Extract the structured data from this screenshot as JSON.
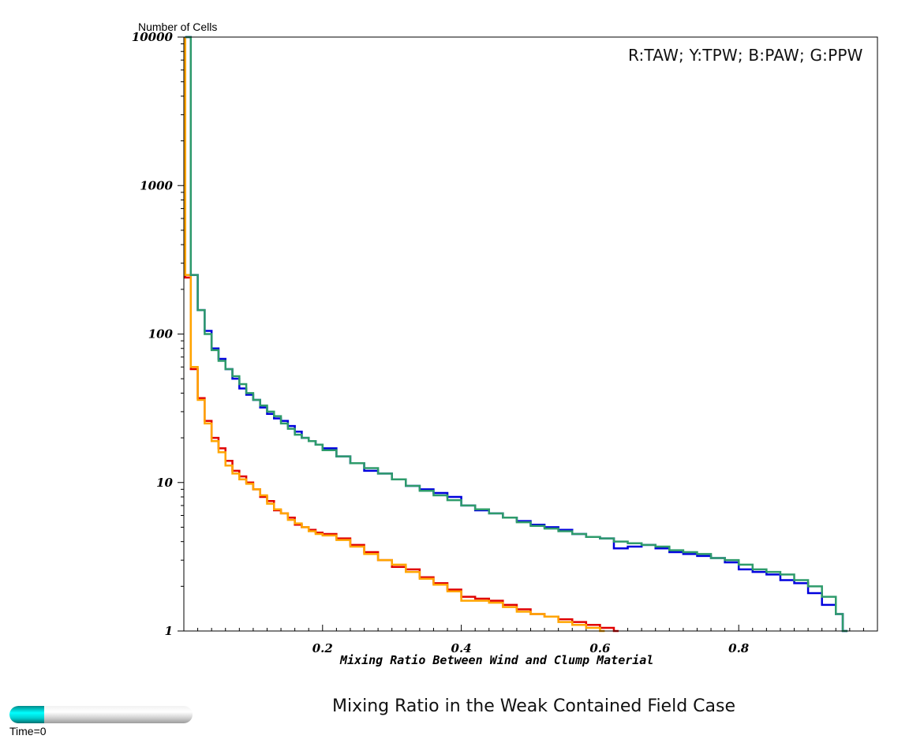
{
  "chart_data": {
    "type": "line",
    "title": "Mixing Ratio in the Weak Contained Field Case",
    "xlabel": "Mixing Ratio Between Wind and Clump Material",
    "ylabel": "Number of Cells",
    "legend_note": "R:TAW; Y:TPW; B:PAW; G:PPW",
    "xlim": [
      0,
      1.0
    ],
    "ylim": [
      1,
      10000
    ],
    "y_scale": "log",
    "x_ticks": [
      0.2,
      0.4,
      0.6,
      0.8
    ],
    "x_tick_labels": [
      "0.2",
      "0.4",
      "0.6",
      "0.8"
    ],
    "y_ticks": [
      1,
      10,
      100,
      1000,
      10000
    ],
    "y_tick_labels": [
      "1",
      "10",
      "100",
      "1000",
      "10000"
    ],
    "grid": false,
    "step": true,
    "series": [
      {
        "name": "TAW",
        "color": "#e00000",
        "points": [
          [
            0.002,
            240
          ],
          [
            0.01,
            58
          ],
          [
            0.02,
            37
          ],
          [
            0.03,
            26
          ],
          [
            0.04,
            20
          ],
          [
            0.05,
            17
          ],
          [
            0.06,
            14
          ],
          [
            0.07,
            12
          ],
          [
            0.08,
            11
          ],
          [
            0.09,
            10
          ],
          [
            0.1,
            9
          ],
          [
            0.11,
            8
          ],
          [
            0.12,
            7.5
          ],
          [
            0.13,
            6.5
          ],
          [
            0.14,
            6.2
          ],
          [
            0.15,
            5.8
          ],
          [
            0.16,
            5.2
          ],
          [
            0.17,
            5
          ],
          [
            0.18,
            4.8
          ],
          [
            0.19,
            4.6
          ],
          [
            0.2,
            4.5
          ],
          [
            0.22,
            4.2
          ],
          [
            0.24,
            3.8
          ],
          [
            0.26,
            3.4
          ],
          [
            0.28,
            3.0
          ],
          [
            0.3,
            2.7
          ],
          [
            0.32,
            2.6
          ],
          [
            0.34,
            2.3
          ],
          [
            0.36,
            2.1
          ],
          [
            0.38,
            1.9
          ],
          [
            0.4,
            1.7
          ],
          [
            0.42,
            1.65
          ],
          [
            0.44,
            1.6
          ],
          [
            0.46,
            1.5
          ],
          [
            0.48,
            1.4
          ],
          [
            0.5,
            1.3
          ],
          [
            0.52,
            1.25
          ],
          [
            0.54,
            1.2
          ],
          [
            0.56,
            1.15
          ],
          [
            0.58,
            1.1
          ],
          [
            0.6,
            1.05
          ],
          [
            0.62,
            1.0
          ]
        ]
      },
      {
        "name": "TPW",
        "color": "#ffa500",
        "points": [
          [
            0.002,
            250
          ],
          [
            0.01,
            60
          ],
          [
            0.02,
            36
          ],
          [
            0.03,
            25
          ],
          [
            0.04,
            19
          ],
          [
            0.05,
            16
          ],
          [
            0.06,
            13
          ],
          [
            0.07,
            11.5
          ],
          [
            0.08,
            10.5
          ],
          [
            0.09,
            9.8
          ],
          [
            0.1,
            9
          ],
          [
            0.11,
            8.2
          ],
          [
            0.12,
            7.2
          ],
          [
            0.13,
            6.6
          ],
          [
            0.14,
            6.2
          ],
          [
            0.15,
            5.6
          ],
          [
            0.16,
            5.3
          ],
          [
            0.17,
            5
          ],
          [
            0.18,
            4.7
          ],
          [
            0.19,
            4.5
          ],
          [
            0.2,
            4.4
          ],
          [
            0.22,
            4.1
          ],
          [
            0.24,
            3.7
          ],
          [
            0.26,
            3.3
          ],
          [
            0.28,
            3.0
          ],
          [
            0.3,
            2.8
          ],
          [
            0.32,
            2.5
          ],
          [
            0.34,
            2.25
          ],
          [
            0.36,
            2.05
          ],
          [
            0.38,
            1.85
          ],
          [
            0.4,
            1.6
          ],
          [
            0.42,
            1.6
          ],
          [
            0.44,
            1.55
          ],
          [
            0.46,
            1.45
          ],
          [
            0.48,
            1.35
          ],
          [
            0.5,
            1.3
          ],
          [
            0.52,
            1.25
          ],
          [
            0.54,
            1.15
          ],
          [
            0.56,
            1.1
          ],
          [
            0.58,
            1.05
          ],
          [
            0.6,
            1.0
          ]
        ]
      },
      {
        "name": "PAW",
        "color": "#0000dd",
        "points": [
          [
            0.002,
            10000
          ],
          [
            0.01,
            250
          ],
          [
            0.02,
            145
          ],
          [
            0.03,
            105
          ],
          [
            0.04,
            80
          ],
          [
            0.05,
            68
          ],
          [
            0.06,
            58
          ],
          [
            0.07,
            50
          ],
          [
            0.08,
            43
          ],
          [
            0.09,
            39
          ],
          [
            0.1,
            36
          ],
          [
            0.11,
            32
          ],
          [
            0.12,
            29
          ],
          [
            0.13,
            27
          ],
          [
            0.14,
            26
          ],
          [
            0.15,
            24
          ],
          [
            0.16,
            22
          ],
          [
            0.17,
            20
          ],
          [
            0.18,
            19
          ],
          [
            0.19,
            18
          ],
          [
            0.2,
            17
          ],
          [
            0.22,
            15
          ],
          [
            0.24,
            13.5
          ],
          [
            0.26,
            12
          ],
          [
            0.28,
            11.5
          ],
          [
            0.3,
            10.5
          ],
          [
            0.32,
            9.5
          ],
          [
            0.34,
            9
          ],
          [
            0.36,
            8.5
          ],
          [
            0.38,
            8
          ],
          [
            0.4,
            7
          ],
          [
            0.42,
            6.5
          ],
          [
            0.44,
            6.2
          ],
          [
            0.46,
            5.8
          ],
          [
            0.48,
            5.5
          ],
          [
            0.5,
            5.2
          ],
          [
            0.52,
            5
          ],
          [
            0.54,
            4.8
          ],
          [
            0.56,
            4.5
          ],
          [
            0.58,
            4.3
          ],
          [
            0.6,
            4.2
          ],
          [
            0.62,
            3.6
          ],
          [
            0.64,
            3.7
          ],
          [
            0.66,
            3.8
          ],
          [
            0.68,
            3.6
          ],
          [
            0.7,
            3.4
          ],
          [
            0.72,
            3.3
          ],
          [
            0.74,
            3.2
          ],
          [
            0.76,
            3.1
          ],
          [
            0.78,
            2.9
          ],
          [
            0.8,
            2.6
          ],
          [
            0.82,
            2.5
          ],
          [
            0.84,
            2.4
          ],
          [
            0.86,
            2.2
          ],
          [
            0.88,
            2.1
          ],
          [
            0.9,
            1.8
          ],
          [
            0.92,
            1.5
          ],
          [
            0.94,
            1.3
          ],
          [
            0.95,
            1.0
          ]
        ]
      },
      {
        "name": "PPW",
        "color": "#2e9b6b",
        "points": [
          [
            0.002,
            10000
          ],
          [
            0.01,
            250
          ],
          [
            0.02,
            145
          ],
          [
            0.03,
            100
          ],
          [
            0.04,
            78
          ],
          [
            0.05,
            66
          ],
          [
            0.06,
            58
          ],
          [
            0.07,
            52
          ],
          [
            0.08,
            46
          ],
          [
            0.09,
            40
          ],
          [
            0.1,
            36
          ],
          [
            0.11,
            33
          ],
          [
            0.12,
            30
          ],
          [
            0.13,
            28
          ],
          [
            0.14,
            25
          ],
          [
            0.15,
            23
          ],
          [
            0.16,
            21
          ],
          [
            0.17,
            20
          ],
          [
            0.18,
            19
          ],
          [
            0.19,
            18
          ],
          [
            0.2,
            16.5
          ],
          [
            0.22,
            15
          ],
          [
            0.24,
            13.5
          ],
          [
            0.26,
            12.5
          ],
          [
            0.28,
            11.5
          ],
          [
            0.3,
            10.5
          ],
          [
            0.32,
            9.5
          ],
          [
            0.34,
            8.8
          ],
          [
            0.36,
            8.2
          ],
          [
            0.38,
            7.6
          ],
          [
            0.4,
            7
          ],
          [
            0.42,
            6.6
          ],
          [
            0.44,
            6.2
          ],
          [
            0.46,
            5.8
          ],
          [
            0.48,
            5.4
          ],
          [
            0.5,
            5.1
          ],
          [
            0.52,
            4.9
          ],
          [
            0.54,
            4.7
          ],
          [
            0.56,
            4.5
          ],
          [
            0.58,
            4.3
          ],
          [
            0.6,
            4.2
          ],
          [
            0.62,
            4.0
          ],
          [
            0.64,
            3.9
          ],
          [
            0.66,
            3.8
          ],
          [
            0.68,
            3.7
          ],
          [
            0.7,
            3.5
          ],
          [
            0.72,
            3.4
          ],
          [
            0.74,
            3.3
          ],
          [
            0.76,
            3.1
          ],
          [
            0.78,
            3.0
          ],
          [
            0.8,
            2.8
          ],
          [
            0.82,
            2.6
          ],
          [
            0.84,
            2.5
          ],
          [
            0.86,
            2.4
          ],
          [
            0.88,
            2.2
          ],
          [
            0.9,
            2.0
          ],
          [
            0.92,
            1.7
          ],
          [
            0.94,
            1.3
          ],
          [
            0.95,
            1.0
          ]
        ]
      }
    ]
  },
  "time_slider": {
    "label": "Time=0",
    "value": 0,
    "fill_fraction": 0.19,
    "fill_color": "#00ffff"
  }
}
